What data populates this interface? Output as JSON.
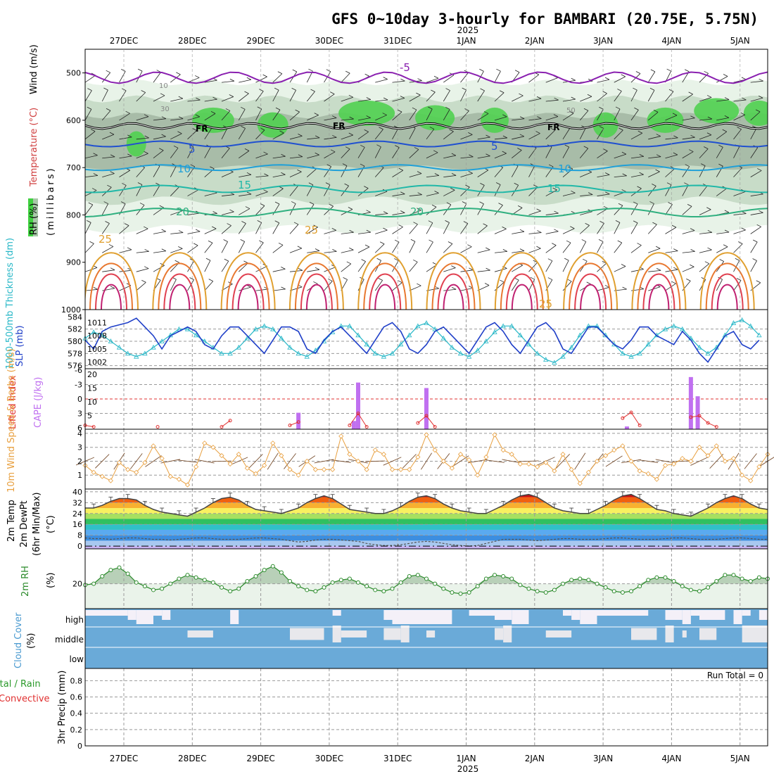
{
  "title": "GFS 0~10day 3-hourly for BAMBARI (20.75E, 5.75N)",
  "colors": {
    "wind_series": "#e8a040",
    "slp": "#1f3fc8",
    "thickness": "#2ab8c8",
    "cape": "#c070f0",
    "lifted_index": "#e03030",
    "rh": "#2a8a2a",
    "cloud": "#6aaad8",
    "cloud_clear": "#f4f0f8"
  },
  "chart_data": [
    {
      "id": "upper_air",
      "type": "heatmap",
      "x_labels": [
        "27DEC",
        "28DEC",
        "29DEC",
        "30DEC",
        "31DEC",
        "1JAN",
        "2JAN",
        "3JAN",
        "4JAN",
        "5JAN"
      ],
      "year_label": "2025",
      "ylabel": "(millibars)",
      "left_labels": {
        "wind": "Wind (m/s)",
        "temperature": "Temperature (°C)",
        "rh": "RH (%)"
      },
      "yticks": [
        "500",
        "600",
        "700",
        "800",
        "900",
        "1000"
      ],
      "ylim": [
        1000,
        450
      ],
      "temperature_contour_labels": [
        "-5",
        "5",
        "10",
        "15",
        "20",
        "25"
      ],
      "rh_contour_labels": [
        "10",
        "30",
        "50"
      ],
      "freezing_label": "FR"
    },
    {
      "id": "slp_thickness",
      "type": "line",
      "left_labels": {
        "thickness": "1000-500mb Thickness (dm)",
        "slp": "SLP (mb)"
      },
      "yticks_left": [
        "576",
        "578",
        "580",
        "582",
        "584"
      ],
      "yticks_right": [
        "1002",
        "1005",
        "1008",
        "1011"
      ],
      "slp": [
        1007,
        1005,
        1009,
        1010,
        1010.5,
        1011,
        1012,
        1010,
        1008,
        1005,
        1008,
        1009,
        1010,
        1009,
        1006,
        1005,
        1008,
        1010,
        1010,
        1008,
        1006,
        1004,
        1007,
        1010,
        1010,
        1009,
        1005,
        1004,
        1007,
        1009,
        1010,
        1008,
        1006,
        1004,
        1007,
        1010,
        1011,
        1009,
        1005,
        1004,
        1006,
        1009,
        1010,
        1008,
        1006,
        1004,
        1007,
        1010,
        1011,
        1009,
        1006,
        1004,
        1007,
        1010,
        1011,
        1009,
        1005,
        1004,
        1007,
        1010,
        1010,
        1008,
        1006,
        1005,
        1007,
        1010,
        1010,
        1008,
        1007,
        1006,
        1009,
        1007,
        1004,
        1002,
        1005,
        1008,
        1009,
        1006,
        1005,
        1007
      ],
      "thickness": [
        580.5,
        581.5,
        581,
        580,
        579,
        578,
        577.5,
        578,
        579,
        580,
        581,
        582,
        582,
        581,
        580,
        579,
        578,
        578,
        579,
        580.5,
        582,
        582.5,
        582,
        580.5,
        579,
        578,
        577.5,
        578.5,
        580,
        581.5,
        582.5,
        582.5,
        581,
        579.5,
        578,
        577.5,
        578,
        579.5,
        581,
        582.5,
        583,
        582,
        580.5,
        579,
        578,
        577.5,
        578.5,
        580,
        581.5,
        582.5,
        582.5,
        581,
        579.5,
        578,
        577,
        576.5,
        577.5,
        579,
        581,
        582.5,
        582.5,
        581,
        579.5,
        578,
        577.5,
        578,
        579.5,
        581,
        582,
        582.5,
        582,
        580.5,
        579,
        578,
        579,
        581,
        583,
        583.5,
        582.5,
        581
      ]
    },
    {
      "id": "cape_li",
      "type": "bar",
      "left_labels": {
        "li": "Lifted Index",
        "cape": "CAPE (J/kg)"
      },
      "yticks_left": [
        "6",
        "3",
        "0",
        "-3",
        "-6"
      ],
      "yticks_right": [
        "5",
        "10",
        "15",
        "20"
      ],
      "cape_bars": [
        {
          "x": 25.0,
          "value": 6
        },
        {
          "x": 31.5,
          "value": 3
        },
        {
          "x": 32.0,
          "value": 17
        },
        {
          "x": 40.0,
          "value": 15
        },
        {
          "x": 63.5,
          "value": 1
        },
        {
          "x": 71.0,
          "value": 19
        },
        {
          "x": 71.8,
          "value": 12
        }
      ],
      "li_points": [
        {
          "x": 0.0,
          "value": 5.5
        },
        {
          "x": 1.0,
          "value": 5.8
        },
        {
          "x": 8.5,
          "value": 5.8
        },
        {
          "x": 16.0,
          "value": 5.8
        },
        {
          "x": 17.0,
          "value": 4.5
        },
        {
          "x": 24.0,
          "value": 5.5
        },
        {
          "x": 25.0,
          "value": 4.8
        },
        {
          "x": 31.0,
          "value": 5.5
        },
        {
          "x": 32.0,
          "value": 3.0
        },
        {
          "x": 33.0,
          "value": 5.8
        },
        {
          "x": 39.0,
          "value": 5.0
        },
        {
          "x": 40.0,
          "value": 3.5
        },
        {
          "x": 41.0,
          "value": 5.8
        },
        {
          "x": 63.0,
          "value": 4.0
        },
        {
          "x": 64.0,
          "value": 2.8
        },
        {
          "x": 65.0,
          "value": 5.5
        },
        {
          "x": 71.0,
          "value": 3.8
        },
        {
          "x": 72.0,
          "value": 3.5
        },
        {
          "x": 73.0,
          "value": 5.0
        },
        {
          "x": 74.0,
          "value": 5.8
        }
      ]
    },
    {
      "id": "wind10m",
      "type": "line",
      "left_labels": {
        "wind": "10m Wind Speed & Barbs (m/s)"
      },
      "yticks": [
        "1",
        "2",
        "3",
        "4"
      ],
      "ylim": [
        0,
        4.3
      ],
      "values": [
        1.7,
        1.2,
        0.9,
        0.6,
        1.9,
        1.4,
        1.2,
        1.9,
        3.1,
        2.2,
        0.9,
        0.7,
        0.3,
        1.6,
        3.3,
        3.0,
        2.4,
        1.8,
        2.5,
        1.5,
        1.1,
        1.7,
        3.3,
        2.4,
        1.4,
        1.0,
        2.0,
        1.4,
        1.4,
        1.4,
        3.8,
        2.5,
        2.0,
        1.4,
        2.8,
        2.5,
        1.4,
        1.4,
        1.4,
        2.3,
        3.9,
        2.8,
        2.0,
        1.5,
        2.5,
        2.1,
        1.0,
        2.3,
        3.9,
        2.8,
        2.5,
        1.8,
        1.8,
        1.6,
        1.9,
        1.3,
        2.5,
        1.4,
        0.4,
        1.2,
        2.0,
        2.4,
        2.8,
        3.1,
        2.0,
        1.3,
        1.1,
        0.7,
        1.7,
        1.8,
        2.2,
        2.0,
        3.0,
        2.4,
        3.1,
        2.0,
        2.2,
        1.0,
        0.6,
        1.6,
        2.5
      ]
    },
    {
      "id": "temperature2m",
      "type": "area",
      "left_labels": {
        "temp": "2m Temp",
        "dewpt": "2m DewPt",
        "minmax": "(6hr Min/Max)",
        "unit": "(°C)"
      },
      "yticks": [
        "0",
        "8",
        "16",
        "24",
        "32",
        "40"
      ],
      "ylim": [
        -2,
        42
      ],
      "temp": [
        28,
        28,
        30,
        33,
        35,
        35,
        34,
        30,
        27,
        25,
        24,
        23,
        22,
        25,
        28,
        32,
        35,
        36,
        34,
        30,
        27,
        26,
        25,
        24,
        26,
        28,
        32,
        35,
        37,
        35,
        31,
        27,
        26,
        25,
        24,
        24,
        26,
        29,
        33,
        36,
        37,
        35,
        31,
        28,
        26,
        25,
        24,
        24,
        27,
        30,
        34,
        37,
        38,
        36,
        32,
        28,
        26,
        25,
        24,
        24,
        27,
        30,
        34,
        37,
        38,
        35,
        31,
        27,
        26,
        24,
        23,
        22,
        25,
        28,
        32,
        35,
        37,
        35,
        31,
        28,
        27
      ],
      "dewpt": [
        6,
        5.5,
        5.5,
        5,
        5.5,
        6,
        6,
        5.5,
        5,
        5,
        4.5,
        5,
        5.5,
        6,
        6,
        5.5,
        5,
        5,
        5,
        5.5,
        6,
        6,
        5.5,
        5,
        4,
        3,
        3.5,
        4.5,
        5,
        5,
        4.5,
        4,
        3.5,
        2,
        1,
        0.5,
        0.5,
        1,
        2,
        3,
        3.5,
        3,
        2,
        1,
        0.5,
        0,
        0.5,
        2,
        3.5,
        5,
        5,
        5,
        4.5,
        4,
        4.5,
        5,
        5.5,
        5.5,
        5,
        5,
        5,
        5.5,
        6,
        6,
        5.5,
        5,
        5,
        5,
        5.5,
        6,
        6,
        5.5,
        5,
        5,
        5,
        5.5,
        6,
        6,
        5.5,
        5,
        5
      ]
    },
    {
      "id": "rh2m",
      "type": "area",
      "left_labels": {
        "rh": "2m RH",
        "unit": "(%)"
      },
      "yticks": [
        "20"
      ],
      "ylim": [
        0,
        48
      ],
      "values": [
        19,
        20,
        26,
        31,
        33,
        28,
        21,
        18,
        15,
        16,
        20,
        24,
        27,
        25,
        23,
        21,
        17,
        14,
        16,
        22,
        26,
        31,
        34,
        29,
        22,
        18,
        15,
        14,
        17,
        21,
        23,
        24,
        21,
        18,
        15,
        14,
        16,
        21,
        26,
        27,
        24,
        20,
        16,
        13,
        12,
        13,
        18,
        24,
        27,
        26,
        24,
        19,
        16,
        14,
        13,
        15,
        20,
        23,
        24,
        23,
        20,
        17,
        14,
        13,
        14,
        18,
        23,
        25,
        25,
        22,
        18,
        15,
        14,
        17,
        22,
        27,
        27,
        24,
        22,
        25,
        24
      ]
    },
    {
      "id": "cloud_cover",
      "type": "heatmap",
      "left_labels": {
        "cloud": "Cloud Cover",
        "unit": "(%)"
      },
      "levels": [
        "high",
        "middle",
        "low"
      ],
      "high_gaps": [
        [
          0,
          5
        ],
        [
          5,
          6
        ],
        [
          6,
          8
        ],
        [
          8,
          9
        ],
        [
          9,
          10
        ],
        [
          17,
          18
        ],
        [
          29,
          30
        ],
        [
          35,
          36
        ],
        [
          36,
          43
        ],
        [
          45,
          48
        ],
        [
          48,
          50
        ],
        [
          50,
          52
        ],
        [
          56,
          57
        ],
        [
          57,
          58
        ],
        [
          58,
          60
        ],
        [
          60,
          66
        ],
        [
          68,
          70
        ],
        [
          70,
          71
        ],
        [
          71,
          72
        ],
        [
          72,
          75
        ],
        [
          76,
          77
        ],
        [
          77,
          78
        ],
        [
          79,
          80
        ]
      ],
      "middle_gaps": [
        [
          12,
          15
        ],
        [
          24,
          28
        ],
        [
          29,
          30
        ],
        [
          30,
          33
        ],
        [
          35,
          37
        ],
        [
          37,
          38
        ],
        [
          40,
          41
        ],
        [
          48,
          49
        ],
        [
          49,
          50
        ],
        [
          54,
          57
        ],
        [
          64,
          67
        ],
        [
          68,
          69
        ],
        [
          70,
          70.5
        ],
        [
          72,
          74
        ],
        [
          77,
          80
        ]
      ]
    },
    {
      "id": "precip3h",
      "type": "bar",
      "left_labels": {
        "total": "Total / Rain",
        "conv": "Convective",
        "unit": "3hr Precip (mm)"
      },
      "yticks": [
        "0",
        "0.2",
        "0.4",
        "0.6",
        "0.8"
      ],
      "ylim": [
        0,
        0.95
      ],
      "run_total": "Run Total = 0",
      "values": []
    }
  ]
}
